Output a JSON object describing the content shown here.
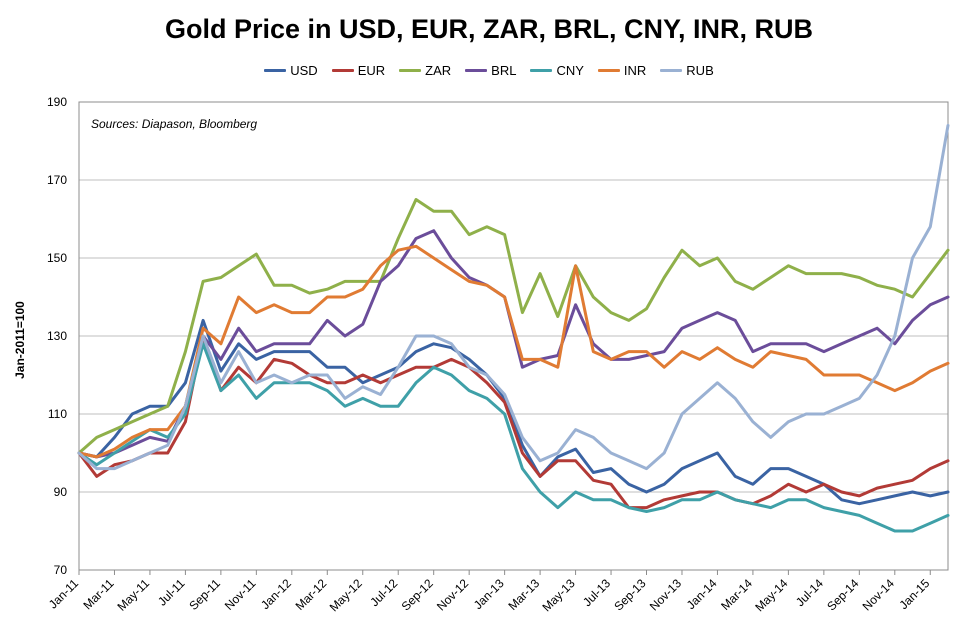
{
  "chart_data": {
    "type": "line",
    "title": "Gold Price in USD, EUR, ZAR, BRL, CNY, INR, RUB",
    "ylabel": "Jan-2011=100",
    "xlabel": "",
    "annotation": "Sources: Diapason, Bloomberg",
    "ylim": [
      70,
      190
    ],
    "yticks": [
      70,
      90,
      110,
      130,
      150,
      170,
      190
    ],
    "grid": "horizontal",
    "legend_position": "top",
    "x_ticks": [
      "Jan-11",
      "Mar-11",
      "May-11",
      "Jul-11",
      "Sep-11",
      "Nov-11",
      "Jan-12",
      "Mar-12",
      "May-12",
      "Jul-12",
      "Sep-12",
      "Nov-12",
      "Jan-13",
      "Mar-13",
      "May-13",
      "Jul-13",
      "Sep-13",
      "Nov-13",
      "Jan-14",
      "Mar-14",
      "May-14",
      "Jul-14",
      "Sep-14",
      "Nov-14",
      "Jan-15"
    ],
    "x_months": [
      0,
      1,
      2,
      3,
      4,
      5,
      6,
      7,
      8,
      9,
      10,
      11,
      12,
      13,
      14,
      15,
      16,
      17,
      18,
      19,
      20,
      21,
      22,
      23,
      24,
      25,
      26,
      27,
      28,
      29,
      30,
      31,
      32,
      33,
      34,
      35,
      36,
      37,
      38,
      39,
      40,
      41,
      42,
      43,
      44,
      45,
      46,
      47,
      48,
      49
    ],
    "series": [
      {
        "name": "USD",
        "color": "#3a63a3",
        "values": [
          100,
          99,
          104,
          110,
          112,
          112,
          118,
          134,
          121,
          128,
          124,
          126,
          126,
          126,
          122,
          122,
          118,
          120,
          122,
          126,
          128,
          127,
          124,
          120,
          114,
          102,
          94,
          99,
          101,
          95,
          96,
          92,
          90,
          92,
          96,
          98,
          100,
          94,
          92,
          96,
          96,
          94,
          92,
          88,
          87,
          88,
          89,
          90,
          89,
          90
        ]
      },
      {
        "name": "EUR",
        "color": "#b23a36",
        "values": [
          100,
          94,
          97,
          98,
          100,
          100,
          108,
          130,
          116,
          122,
          118,
          124,
          123,
          120,
          118,
          118,
          120,
          118,
          120,
          122,
          122,
          124,
          122,
          118,
          113,
          100,
          94,
          98,
          98,
          93,
          92,
          86,
          86,
          88,
          89,
          90,
          90,
          88,
          87,
          89,
          92,
          90,
          92,
          90,
          89,
          91,
          92,
          93,
          96,
          98
        ]
      },
      {
        "name": "ZAR",
        "color": "#8fb04a",
        "values": [
          100,
          104,
          106,
          108,
          110,
          112,
          126,
          144,
          145,
          148,
          151,
          143,
          143,
          141,
          142,
          144,
          144,
          144,
          155,
          165,
          162,
          162,
          156,
          158,
          156,
          136,
          146,
          135,
          148,
          140,
          136,
          134,
          137,
          145,
          152,
          148,
          150,
          144,
          142,
          145,
          148,
          146,
          146,
          146,
          145,
          143,
          142,
          140,
          146,
          152
        ]
      },
      {
        "name": "BRL",
        "color": "#6b4d9a",
        "values": [
          100,
          99,
          100,
          102,
          104,
          103,
          112,
          130,
          124,
          132,
          126,
          128,
          128,
          128,
          134,
          130,
          133,
          144,
          148,
          155,
          157,
          150,
          145,
          143,
          140,
          122,
          124,
          125,
          138,
          128,
          124,
          124,
          125,
          126,
          132,
          134,
          136,
          134,
          126,
          128,
          128,
          128,
          126,
          128,
          130,
          132,
          128,
          134,
          138,
          140
        ]
      },
      {
        "name": "CNY",
        "color": "#3fa0a8",
        "values": [
          100,
          97,
          100,
          103,
          106,
          104,
          110,
          128,
          116,
          120,
          114,
          118,
          118,
          118,
          116,
          112,
          114,
          112,
          112,
          118,
          122,
          120,
          116,
          114,
          110,
          96,
          90,
          86,
          90,
          88,
          88,
          86,
          85,
          86,
          88,
          88,
          90,
          88,
          87,
          86,
          88,
          88,
          86,
          85,
          84,
          82,
          80,
          80,
          82,
          84
        ]
      },
      {
        "name": "INR",
        "color": "#e07b33",
        "values": [
          100,
          99,
          101,
          104,
          106,
          106,
          112,
          132,
          128,
          140,
          136,
          138,
          136,
          136,
          140,
          140,
          142,
          148,
          152,
          153,
          150,
          147,
          144,
          143,
          140,
          124,
          124,
          122,
          148,
          126,
          124,
          126,
          126,
          122,
          126,
          124,
          127,
          124,
          122,
          126,
          125,
          124,
          120,
          120,
          120,
          118,
          116,
          118,
          121,
          123
        ]
      },
      {
        "name": "RUB",
        "color": "#9ab1d3",
        "values": [
          100,
          96,
          96,
          98,
          100,
          102,
          112,
          130,
          118,
          126,
          118,
          120,
          118,
          120,
          120,
          114,
          117,
          115,
          122,
          130,
          130,
          128,
          122,
          120,
          115,
          104,
          98,
          100,
          106,
          104,
          100,
          98,
          96,
          100,
          110,
          114,
          118,
          114,
          108,
          104,
          108,
          110,
          110,
          112,
          114,
          120,
          130,
          150,
          158,
          184
        ]
      }
    ]
  }
}
